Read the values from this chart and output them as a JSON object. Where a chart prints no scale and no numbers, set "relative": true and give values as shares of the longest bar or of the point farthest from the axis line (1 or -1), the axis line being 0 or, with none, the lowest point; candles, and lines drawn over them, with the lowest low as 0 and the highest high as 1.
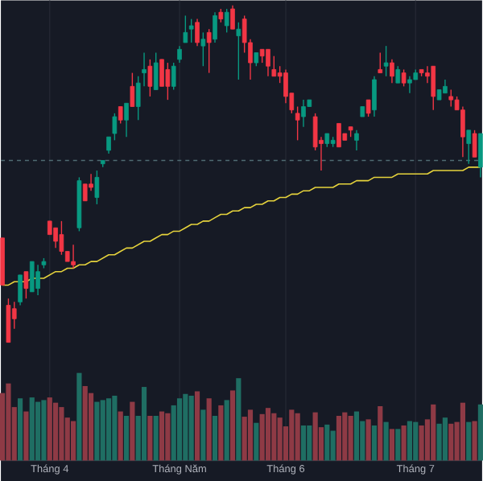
{
  "chart_data": [
    {
      "type": "candlestick",
      "relative": true,
      "grid": "x",
      "tick_labels": false,
      "categories": [
        null,
        null,
        null,
        null,
        null,
        null,
        null,
        null,
        null,
        null,
        null,
        null,
        null,
        null,
        null,
        null,
        null,
        null,
        null,
        null,
        null,
        null,
        null,
        null,
        null,
        null,
        null,
        null,
        null,
        null,
        null,
        null,
        null,
        null,
        null,
        null,
        null,
        null,
        null,
        null,
        null,
        null,
        null,
        null,
        null,
        null,
        null,
        null,
        null,
        null,
        null,
        null,
        null,
        null,
        null,
        null,
        null,
        null,
        null,
        null,
        null,
        null,
        null,
        null,
        null,
        null,
        null,
        null,
        null,
        null,
        null,
        null,
        null,
        null,
        null,
        null,
        null,
        null,
        null,
        null,
        null,
        null
      ],
      "ohlc": [
        [
          0.31,
          0.31,
          0.17,
          0.17
        ],
        [
          0.11,
          0.13,
          0,
          0
        ],
        [
          0.1,
          0.12,
          0.04,
          0.07
        ],
        [
          0.12,
          0.2,
          0.11,
          0.2
        ],
        [
          0.21,
          0.21,
          0.13,
          0.16
        ],
        [
          0.15,
          0.24,
          0.15,
          0.24
        ],
        [
          0.16,
          0.23,
          0.14,
          0.21
        ],
        [
          0.23,
          0.25,
          0.22,
          0.24
        ],
        [
          0.36,
          0.36,
          0.32,
          0.32
        ],
        [
          0.34,
          0.34,
          0.28,
          0.3
        ],
        [
          0.32,
          0.36,
          0.26,
          0.27
        ],
        [
          0.27,
          0.27,
          0.24,
          0.24
        ],
        [
          0.24,
          0.29,
          0.22,
          0.23
        ],
        [
          0.34,
          0.49,
          0.33,
          0.48
        ],
        [
          0.47,
          0.47,
          0.42,
          0.42
        ],
        [
          0.47,
          0.5,
          0.45,
          0.46
        ],
        [
          0.43,
          0.51,
          0.41,
          0.49
        ],
        [
          0.53,
          0.54,
          0.52,
          0.54
        ],
        [
          0.57,
          0.61,
          0.56,
          0.61
        ],
        [
          0.62,
          0.68,
          0.6,
          0.67
        ],
        [
          0.7,
          0.7,
          0.65,
          0.66
        ],
        [
          0.66,
          0.71,
          0.61,
          0.71
        ],
        [
          0.76,
          0.8,
          0.7,
          0.7
        ],
        [
          0.7,
          0.79,
          0.66,
          0.77
        ],
        [
          0.8,
          0.86,
          0.76,
          0.81
        ],
        [
          0.82,
          0.84,
          0.73,
          0.76
        ],
        [
          0.75,
          0.86,
          0.75,
          0.83
        ],
        [
          0.84,
          0.84,
          0.76,
          0.76
        ],
        [
          0.81,
          0.83,
          0.72,
          0.76
        ],
        [
          0.76,
          0.83,
          0.75,
          0.82
        ],
        [
          0.84,
          0.88,
          0.83,
          0.87
        ],
        [
          0.89,
          0.97,
          0.89,
          0.92
        ],
        [
          0.93,
          0.96,
          0.89,
          0.94
        ],
        [
          0.95,
          0.96,
          0.88,
          0.89
        ],
        [
          0.88,
          0.92,
          0.82,
          0.9
        ],
        [
          0.92,
          0.93,
          0.8,
          0.89
        ],
        [
          0.9,
          0.98,
          0.89,
          0.97
        ],
        [
          0.98,
          0.99,
          0.95,
          0.96
        ],
        [
          0.94,
          0.99,
          0.92,
          0.98
        ],
        [
          0.99,
          1,
          0.93,
          0.93
        ],
        [
          0.91,
          0.95,
          0.78,
          0.93
        ],
        [
          0.96,
          0.97,
          0.86,
          0.89
        ],
        [
          0.89,
          0.9,
          0.78,
          0.83
        ],
        [
          0.83,
          0.86,
          0.82,
          0.86
        ],
        [
          0.87,
          0.87,
          0.83,
          0.85
        ],
        [
          0.87,
          0.87,
          0.79,
          0.82
        ],
        [
          0.81,
          0.85,
          0.79,
          0.79
        ],
        [
          0.8,
          0.82,
          0.77,
          0.79
        ],
        [
          0.8,
          0.81,
          0.71,
          0.73
        ],
        [
          0.74,
          0.74,
          0.68,
          0.69
        ],
        [
          0.68,
          0.7,
          0.6,
          0.66
        ],
        [
          0.67,
          0.72,
          0.64,
          0.7
        ],
        [
          0.7,
          0.72,
          0.7,
          0.72
        ],
        [
          0.67,
          0.68,
          0.57,
          0.58
        ],
        [
          0.6,
          0.61,
          0.51,
          0.59
        ],
        [
          0.59,
          0.62,
          0.58,
          0.62
        ],
        [
          0.59,
          0.61,
          0.58,
          0.6
        ],
        [
          0.65,
          0.65,
          0.58,
          0.58
        ],
        [
          0.62,
          0.62,
          0.6,
          0.6
        ],
        [
          0.64,
          0.64,
          0.61,
          0.63
        ],
        [
          0.6,
          0.63,
          0.57,
          0.62
        ],
        [
          0.67,
          0.7,
          0.67,
          0.7
        ],
        [
          0.72,
          0.72,
          0.67,
          0.68
        ],
        [
          0.69,
          0.79,
          0.67,
          0.78
        ],
        [
          0.81,
          0.86,
          0.8,
          0.8
        ],
        [
          0.82,
          0.88,
          0.79,
          0.83
        ],
        [
          0.83,
          0.84,
          0.77,
          0.79
        ],
        [
          0.77,
          0.82,
          0.77,
          0.81
        ],
        [
          0.8,
          0.81,
          0.76,
          0.77
        ],
        [
          0.77,
          0.79,
          0.74,
          0.78
        ],
        [
          0.78,
          0.81,
          0.78,
          0.8
        ],
        [
          0.81,
          0.81,
          0.79,
          0.8
        ],
        [
          0.8,
          0.82,
          0.77,
          0.79
        ],
        [
          0.82,
          0.82,
          0.69,
          0.73
        ],
        [
          0.72,
          0.75,
          0.72,
          0.75
        ],
        [
          0.74,
          0.78,
          0.74,
          0.76
        ],
        [
          0.73,
          0.75,
          0.7,
          0.72
        ],
        [
          0.72,
          0.73,
          0.69,
          0.69
        ],
        [
          0.69,
          0.7,
          0.55,
          0.61
        ],
        [
          0.59,
          0.63,
          0.53,
          0.63
        ],
        [
          0.62,
          0.63,
          0.55,
          0.55
        ],
        [
          0.52,
          0.62,
          0.49,
          0.62
        ]
      ],
      "colors": [
        "#f23645",
        "#f23645",
        "#f23645",
        "#089981",
        "#f23645",
        "#089981",
        "#089981",
        "#089981",
        "#f23645",
        "#f23645",
        "#f23645",
        "#f23645",
        "#f23645",
        "#089981",
        "#f23645",
        "#f23645",
        "#089981",
        "#089981",
        "#089981",
        "#089981",
        "#f23645",
        "#089981",
        "#f23645",
        "#089981",
        "#089981",
        "#f23645",
        "#089981",
        "#f23645",
        "#f23645",
        "#089981",
        "#089981",
        "#089981",
        "#089981",
        "#f23645",
        "#089981",
        "#f23645",
        "#089981",
        "#f23645",
        "#089981",
        "#f23645",
        "#089981",
        "#f23645",
        "#f23645",
        "#089981",
        "#f23645",
        "#f23645",
        "#f23645",
        "#f23645",
        "#f23645",
        "#f23645",
        "#f23645",
        "#089981",
        "#089981",
        "#f23645",
        "#f23645",
        "#089981",
        "#089981",
        "#f23645",
        "#f23645",
        "#f23645",
        "#089981",
        "#089981",
        "#f23645",
        "#089981",
        "#f23645",
        "#089981",
        "#f23645",
        "#089981",
        "#f23645",
        "#089981",
        "#089981",
        "#f23645",
        "#f23645",
        "#f23645",
        "#089981",
        "#089981",
        "#f23645",
        "#f23645",
        "#f23645",
        "#089981",
        "#f23645",
        "#089981"
      ],
      "series": [
        {
          "type": "line",
          "color": "#e6d33c",
          "values": [
            0.17,
            0.17,
            0.18,
            0.18,
            0.18,
            0.19,
            0.19,
            0.19,
            0.2,
            0.21,
            0.21,
            0.22,
            0.22,
            0.23,
            0.23,
            0.24,
            0.24,
            0.25,
            0.26,
            0.26,
            0.27,
            0.28,
            0.28,
            0.29,
            0.3,
            0.3,
            0.31,
            0.32,
            0.32,
            0.33,
            0.33,
            0.34,
            0.35,
            0.35,
            0.36,
            0.36,
            0.37,
            0.38,
            0.38,
            0.39,
            0.39,
            0.4,
            0.4,
            0.41,
            0.41,
            0.42,
            0.42,
            0.43,
            0.43,
            0.44,
            0.44,
            0.45,
            0.45,
            0.46,
            0.46,
            0.46,
            0.46,
            0.47,
            0.47,
            0.47,
            0.48,
            0.48,
            0.48,
            0.49,
            0.49,
            0.49,
            0.49,
            0.5,
            0.5,
            0.5,
            0.5,
            0.5,
            0.5,
            0.51,
            0.51,
            0.51,
            0.51,
            0.51,
            0.51,
            0.52,
            0.52,
            0.52
          ]
        }
      ],
      "ref_lines": [
        {
          "axis": "y",
          "value": 0.54,
          "color": "#4f6b73",
          "line_style": "dashed"
        }
      ]
    },
    {
      "type": "bar",
      "relative": true,
      "grid": "x",
      "categories": [
        null,
        null,
        null,
        null,
        null,
        null,
        null,
        null,
        "Tháng 4",
        null,
        null,
        null,
        null,
        null,
        null,
        null,
        null,
        null,
        null,
        null,
        null,
        null,
        null,
        null,
        null,
        null,
        null,
        null,
        null,
        null,
        "Tháng Năm",
        null,
        null,
        null,
        null,
        null,
        null,
        null,
        null,
        null,
        null,
        null,
        null,
        null,
        null,
        null,
        null,
        null,
        "Tháng 6",
        null,
        null,
        null,
        null,
        null,
        null,
        null,
        null,
        null,
        null,
        null,
        null,
        null,
        null,
        null,
        null,
        null,
        null,
        null,
        null,
        null,
        "Tháng 7",
        null,
        null,
        null,
        null,
        null,
        null,
        null,
        null,
        null,
        null,
        null
      ],
      "values": [
        0.77,
        0.88,
        0.61,
        0.71,
        0.56,
        0.72,
        0.67,
        0.69,
        0.72,
        0.66,
        0.61,
        0.49,
        0.45,
        1,
        0.85,
        0.77,
        0.67,
        0.69,
        0.71,
        0.74,
        0.56,
        0.51,
        0.67,
        0.51,
        0.84,
        0.51,
        0.51,
        0.56,
        0.54,
        0.63,
        0.71,
        0.76,
        0.74,
        0.79,
        0.58,
        0.71,
        0.51,
        0.63,
        0.69,
        0.8,
        0.94,
        0.5,
        0.58,
        0.43,
        0.53,
        0.6,
        0.54,
        0.49,
        0.39,
        0.58,
        0.54,
        0.4,
        0.4,
        0.55,
        0.38,
        0.41,
        0.34,
        0.51,
        0.55,
        0.51,
        0.56,
        0.45,
        0.47,
        0.4,
        0.62,
        0.44,
        0.36,
        0.36,
        0.4,
        0.45,
        0.44,
        0.4,
        0.47,
        0.64,
        0.42,
        0.49,
        0.42,
        0.44,
        0.66,
        0.44,
        0.45,
        0.64
      ],
      "colors": [
        "#8e3a45",
        "#8e3a45",
        "#8e3a45",
        "#1f6e63",
        "#8e3a45",
        "#1f6e63",
        "#1f6e63",
        "#1f6e63",
        "#8e3a45",
        "#8e3a45",
        "#8e3a45",
        "#8e3a45",
        "#8e3a45",
        "#1f6e63",
        "#8e3a45",
        "#8e3a45",
        "#1f6e63",
        "#1f6e63",
        "#1f6e63",
        "#1f6e63",
        "#8e3a45",
        "#1f6e63",
        "#8e3a45",
        "#1f6e63",
        "#1f6e63",
        "#8e3a45",
        "#1f6e63",
        "#8e3a45",
        "#8e3a45",
        "#1f6e63",
        "#1f6e63",
        "#1f6e63",
        "#1f6e63",
        "#8e3a45",
        "#1f6e63",
        "#8e3a45",
        "#1f6e63",
        "#8e3a45",
        "#1f6e63",
        "#8e3a45",
        "#1f6e63",
        "#8e3a45",
        "#8e3a45",
        "#1f6e63",
        "#8e3a45",
        "#8e3a45",
        "#8e3a45",
        "#8e3a45",
        "#8e3a45",
        "#8e3a45",
        "#8e3a45",
        "#1f6e63",
        "#1f6e63",
        "#8e3a45",
        "#8e3a45",
        "#1f6e63",
        "#1f6e63",
        "#8e3a45",
        "#8e3a45",
        "#8e3a45",
        "#1f6e63",
        "#1f6e63",
        "#8e3a45",
        "#1f6e63",
        "#8e3a45",
        "#1f6e63",
        "#8e3a45",
        "#1f6e63",
        "#8e3a45",
        "#1f6e63",
        "#1f6e63",
        "#8e3a45",
        "#8e3a45",
        "#8e3a45",
        "#1f6e63",
        "#1f6e63",
        "#8e3a45",
        "#8e3a45",
        "#8e3a45",
        "#1f6e63",
        "#8e3a45",
        "#1f6e63"
      ]
    }
  ]
}
